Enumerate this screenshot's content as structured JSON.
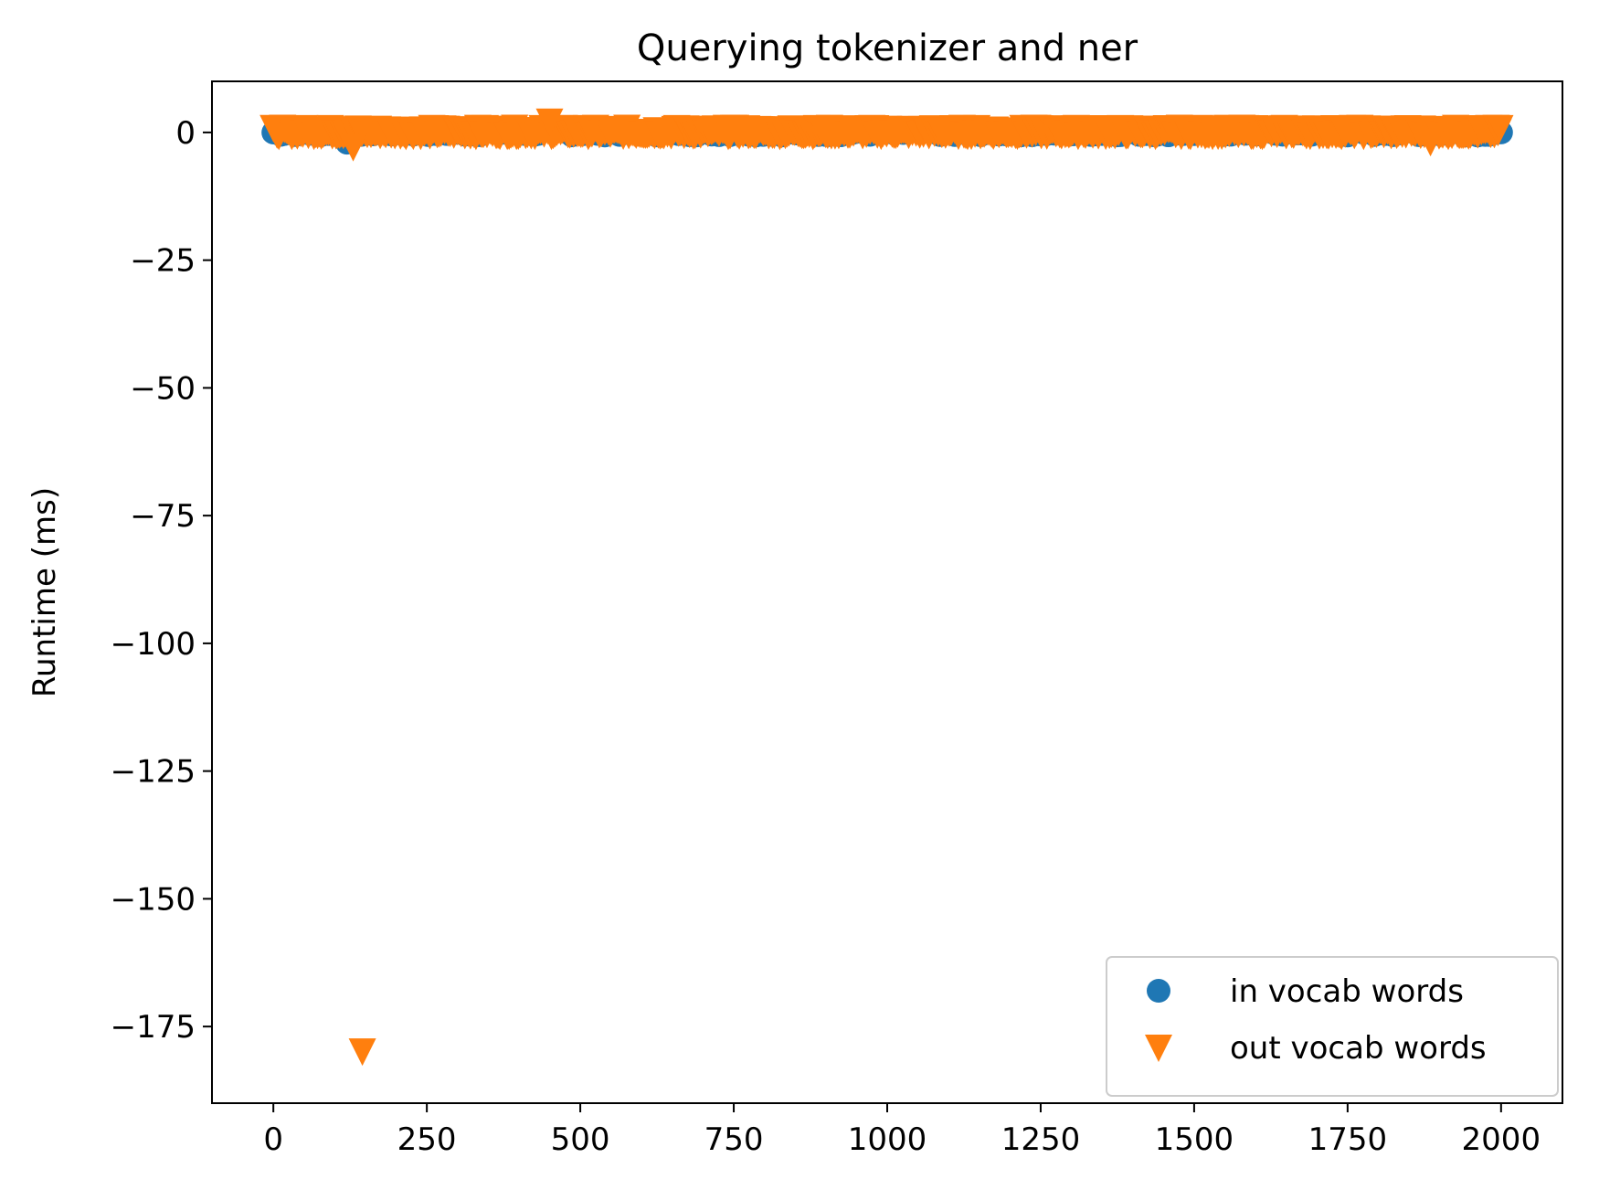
{
  "chart_data": {
    "type": "scatter",
    "title": "Querying tokenizer and ner",
    "xlabel": "",
    "ylabel": "Runtime (ms)",
    "xlim": [
      -100,
      2100
    ],
    "ylim": [
      -190,
      10
    ],
    "x_ticks": [
      0,
      250,
      500,
      750,
      1000,
      1250,
      1500,
      1750,
      2000
    ],
    "y_ticks": [
      0,
      -25,
      -50,
      -75,
      -100,
      -125,
      -150,
      -175
    ],
    "x_tick_labels": [
      "0",
      "250",
      "500",
      "750",
      "1000",
      "1250",
      "1500",
      "1750",
      "2000"
    ],
    "y_tick_labels": [
      "0",
      "−25",
      "−50",
      "−75",
      "−100",
      "−125",
      "−150",
      "−175"
    ],
    "grid": false,
    "legend_position": "lower-right",
    "series": [
      {
        "name": "in vocab words",
        "marker": "circle",
        "color": "#1f77b4",
        "outliers": [
          {
            "x": 120,
            "y": -2
          },
          {
            "x": 1110,
            "y": -0.5
          },
          {
            "x": 1140,
            "y": 0.8
          },
          {
            "x": 1420,
            "y": 0.6
          },
          {
            "x": 1750,
            "y": -0.6
          },
          {
            "x": 2000,
            "y": 0
          }
        ]
      },
      {
        "name": "out vocab words",
        "marker": "triangle-down",
        "color": "#ff7f0e",
        "outliers": [
          {
            "x": 145,
            "y": -180
          },
          {
            "x": 130,
            "y": -3
          },
          {
            "x": 450,
            "y": 2
          },
          {
            "x": 1885,
            "y": -2
          }
        ]
      }
    ],
    "sampling_note_series_x_range": [
      0,
      2000
    ],
    "sampling_note_series_y_baseline": 0
  }
}
